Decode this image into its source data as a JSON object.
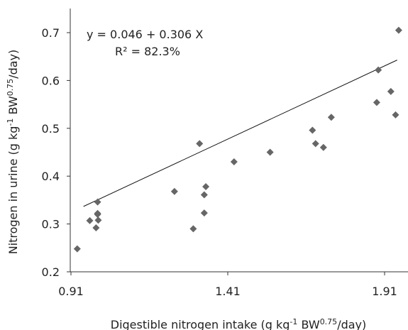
{
  "chart_data": {
    "type": "scatter",
    "xlabel": "Digestible nitrogen intake (g kg-1 BW0.75/day)",
    "xlabel_parts": {
      "pre": "Digestible nitrogen intake (g kg",
      "sup1": "-1",
      "mid": " BW",
      "sup2": "0.75",
      "post": "/day)"
    },
    "ylabel": "Nitrogen in urine (g kg-1 BW0.75/day)",
    "ylabel_parts": {
      "pre": "Nitrogen in urine (g kg",
      "sup1": "-1",
      "mid": " BW",
      "sup2": "0.75",
      "post": "/day)"
    },
    "xlim": [
      0.91,
      1.95
    ],
    "ylim": [
      0.2,
      0.75
    ],
    "x_ticks": [
      "0.91",
      "1.41",
      "1.91"
    ],
    "x_tick_values": [
      0.91,
      1.41,
      1.91
    ],
    "y_ticks": [
      "0.2",
      "0.3",
      "0.4",
      "0.5",
      "0.6",
      "0.7"
    ],
    "y_tick_values": [
      0.2,
      0.3,
      0.4,
      0.5,
      0.6,
      0.7
    ],
    "grid": false,
    "marker": "diamond",
    "marker_color": "#666666",
    "trendline": {
      "intercept": 0.046,
      "slope": 0.306,
      "x_range": [
        0.95,
        1.95
      ]
    },
    "annotations": {
      "equation": "y = 0.046 + 0.306 X",
      "r2": "R² = 82.3%"
    },
    "points": [
      [
        0.93,
        0.248
      ],
      [
        0.97,
        0.307
      ],
      [
        0.99,
        0.292
      ],
      [
        0.995,
        0.32
      ],
      [
        0.995,
        0.322
      ],
      [
        0.995,
        0.346
      ],
      [
        0.997,
        0.308
      ],
      [
        1.24,
        0.368
      ],
      [
        1.3,
        0.29
      ],
      [
        1.32,
        0.468
      ],
      [
        1.335,
        0.323
      ],
      [
        1.335,
        0.361
      ],
      [
        1.34,
        0.378
      ],
      [
        1.43,
        0.43
      ],
      [
        1.545,
        0.45
      ],
      [
        1.68,
        0.496
      ],
      [
        1.69,
        0.468
      ],
      [
        1.715,
        0.46
      ],
      [
        1.74,
        0.523
      ],
      [
        1.885,
        0.554
      ],
      [
        1.89,
        0.622
      ],
      [
        1.93,
        0.577
      ],
      [
        1.945,
        0.528
      ],
      [
        1.955,
        0.705
      ]
    ]
  }
}
